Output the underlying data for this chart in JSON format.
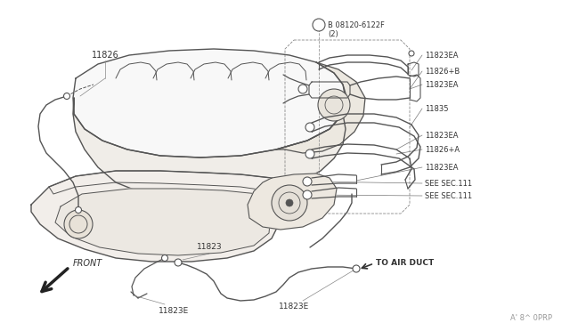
{
  "bg_color": "#ffffff",
  "line_color": "#555555",
  "text_color": "#333333",
  "figsize": [
    6.4,
    3.72
  ],
  "dpi": 100,
  "labels": {
    "bolt_label": "B 08120-6122F\n(2)",
    "part_11826": "11826",
    "part_11823EA_1": "11823EA",
    "part_11826B": "11826+B",
    "part_11823EA_2": "11823EA",
    "part_11835": "11835",
    "part_11823EA_3": "11823EA",
    "part_11826A": "11826+A",
    "part_11823EA_4": "11823EA",
    "see_sec1": "SEE SEC.111",
    "see_sec2": "SEE SEC.111",
    "to_air_duct": "TO AIR DUCT",
    "part_11823": "11823",
    "part_11823E_1": "11823E",
    "part_11823E_2": "11823E",
    "front": "FRONT",
    "watermark": "A' 8^ 0PRP"
  },
  "right_labels": [
    [
      490,
      62,
      "11823EA"
    ],
    [
      490,
      80,
      "11826+B"
    ],
    [
      490,
      95,
      "11823EA"
    ],
    [
      490,
      122,
      "11835"
    ],
    [
      490,
      152,
      "11823EA"
    ],
    [
      490,
      168,
      "11826+A"
    ],
    [
      490,
      188,
      "11823EA"
    ],
    [
      490,
      206,
      "SEE SEC.111"
    ],
    [
      490,
      220,
      "SEE SEC.111"
    ]
  ]
}
